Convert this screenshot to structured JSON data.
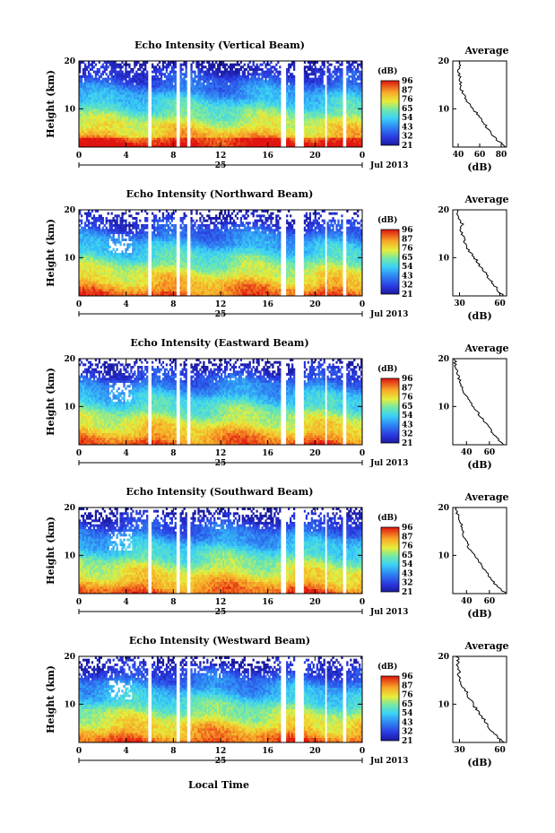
{
  "figure": {
    "xlabel": "Local Time",
    "date_label": "Jul 2013",
    "day_label": "25",
    "colorbar_unit": "(dB)",
    "colorbar_ticks": [
      "96",
      "87",
      "76",
      "65",
      "54",
      "43",
      "32",
      "21"
    ],
    "colors": {
      "low": "#2a2ccc",
      "mid": "#40d8ff",
      "mid2": "#f0ea3a",
      "high": "#e81e14"
    }
  },
  "chart_data": [
    {
      "type": "heatmap",
      "title": "Echo Intensity (Vertical Beam)",
      "ylabel": "Height (km)",
      "x_ticks": [
        "0",
        "4",
        "8",
        "12",
        "16",
        "20",
        "0"
      ],
      "y_ticks": [
        "20",
        "10"
      ],
      "xlim": [
        0,
        24
      ],
      "ylim": [
        2,
        20
      ],
      "data_gaps_hours": [
        [
          5.8,
          6.1
        ],
        [
          8.2,
          8.5
        ],
        [
          9.1,
          9.5
        ],
        [
          17.1,
          17.5
        ],
        [
          18.3,
          19.0
        ],
        [
          20.8,
          21.0
        ],
        [
          22.4,
          22.7
        ]
      ],
      "profile": {
        "title": "Average",
        "xlabel": "(dB)",
        "x_ticks": [
          "40",
          "60",
          "80"
        ],
        "xlim": [
          35,
          85
        ],
        "height_km": [
          2,
          4,
          6,
          8,
          10,
          12,
          14,
          16,
          17,
          18,
          19,
          20
        ],
        "mean_db": [
          84,
          74,
          67,
          61,
          54,
          47,
          43,
          42,
          41,
          40,
          42,
          40
        ]
      }
    },
    {
      "type": "heatmap",
      "title": "Echo Intensity (Northward Beam)",
      "ylabel": "Height (km)",
      "x_ticks": [
        "0",
        "4",
        "8",
        "12",
        "16",
        "20",
        "0"
      ],
      "y_ticks": [
        "20",
        "10"
      ],
      "xlim": [
        0,
        24
      ],
      "ylim": [
        2,
        20
      ],
      "data_gaps_hours": [
        [
          5.8,
          6.1
        ],
        [
          8.2,
          8.5
        ],
        [
          9.1,
          9.5
        ],
        [
          17.1,
          17.5
        ],
        [
          18.3,
          19.0
        ],
        [
          20.8,
          21.0
        ],
        [
          22.4,
          22.7
        ]
      ],
      "profile": {
        "title": "Average",
        "xlabel": "(dB)",
        "x_ticks": [
          "30",
          "60"
        ],
        "xlim": [
          25,
          65
        ],
        "height_km": [
          2,
          4,
          6,
          8,
          10,
          12,
          14,
          16,
          17,
          18,
          19,
          20
        ],
        "mean_db": [
          63,
          56,
          51,
          46,
          41,
          36,
          33,
          31,
          32,
          30,
          29,
          30
        ]
      }
    },
    {
      "type": "heatmap",
      "title": "Echo Intensity (Eastward Beam)",
      "ylabel": "Height (km)",
      "x_ticks": [
        "0",
        "4",
        "8",
        "12",
        "16",
        "20",
        "0"
      ],
      "y_ticks": [
        "20",
        "10"
      ],
      "xlim": [
        0,
        24
      ],
      "ylim": [
        2,
        20
      ],
      "data_gaps_hours": [
        [
          5.8,
          6.1
        ],
        [
          8.2,
          8.5
        ],
        [
          9.1,
          9.5
        ],
        [
          17.1,
          17.5
        ],
        [
          18.3,
          19.0
        ],
        [
          20.8,
          21.0
        ],
        [
          22.4,
          22.7
        ]
      ],
      "profile": {
        "title": "Average",
        "xlabel": "(dB)",
        "x_ticks": [
          "40",
          "60"
        ],
        "xlim": [
          28,
          75
        ],
        "height_km": [
          2,
          4,
          6,
          8,
          10,
          12,
          14,
          16,
          17,
          18,
          19,
          20
        ],
        "mean_db": [
          73,
          64,
          58,
          52,
          46,
          40,
          36,
          33,
          32,
          31,
          30,
          30
        ]
      }
    },
    {
      "type": "heatmap",
      "title": "Echo Intensity (Southward Beam)",
      "ylabel": "Height (km)",
      "x_ticks": [
        "0",
        "4",
        "8",
        "12",
        "16",
        "20",
        "0"
      ],
      "y_ticks": [
        "20",
        "10"
      ],
      "xlim": [
        0,
        24
      ],
      "ylim": [
        2,
        20
      ],
      "data_gaps_hours": [
        [
          5.8,
          6.1
        ],
        [
          8.2,
          8.5
        ],
        [
          9.1,
          9.5
        ],
        [
          17.1,
          17.5
        ],
        [
          18.3,
          19.0
        ],
        [
          20.8,
          21.0
        ],
        [
          22.4,
          22.7
        ]
      ],
      "profile": {
        "title": "Average",
        "xlabel": "(dB)",
        "x_ticks": [
          "40",
          "60"
        ],
        "xlim": [
          28,
          75
        ],
        "height_km": [
          2,
          4,
          6,
          8,
          10,
          12,
          14,
          16,
          17,
          18,
          19,
          20
        ],
        "mean_db": [
          74,
          65,
          59,
          53,
          47,
          41,
          38,
          36,
          35,
          33,
          31,
          31
        ]
      }
    },
    {
      "type": "heatmap",
      "title": "Echo Intensity (Westward Beam)",
      "ylabel": "Height (km)",
      "x_ticks": [
        "0",
        "4",
        "8",
        "12",
        "16",
        "20",
        "0"
      ],
      "y_ticks": [
        "20",
        "10"
      ],
      "xlim": [
        0,
        24
      ],
      "ylim": [
        2,
        20
      ],
      "data_gaps_hours": [
        [
          5.8,
          6.1
        ],
        [
          8.2,
          8.5
        ],
        [
          9.1,
          9.5
        ],
        [
          17.1,
          17.5
        ],
        [
          18.3,
          19.0
        ],
        [
          20.8,
          21.0
        ],
        [
          22.4,
          22.7
        ]
      ],
      "profile": {
        "title": "Average",
        "xlabel": "(dB)",
        "x_ticks": [
          "30",
          "60"
        ],
        "xlim": [
          25,
          65
        ],
        "height_km": [
          2,
          4,
          6,
          8,
          10,
          12,
          14,
          16,
          17,
          18,
          19,
          20
        ],
        "mean_db": [
          62,
          55,
          50,
          45,
          40,
          36,
          32,
          29,
          30,
          28,
          29,
          28
        ]
      }
    }
  ]
}
